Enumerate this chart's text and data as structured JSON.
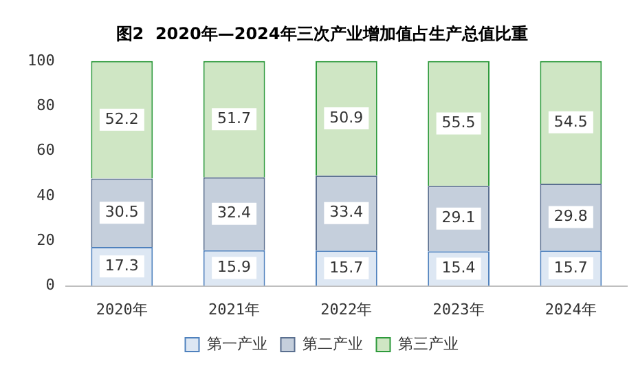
{
  "chart_data": {
    "type": "bar",
    "title": "图2  2020年—2024年三次产业增加值占生产总值比重",
    "categories": [
      "2020年",
      "2021年",
      "2022年",
      "2023年",
      "2024年"
    ],
    "stacked": true,
    "series": [
      {
        "name": "第一产业",
        "color": "#dde7f3",
        "values": [
          17.3,
          15.9,
          15.7,
          15.4,
          15.7
        ]
      },
      {
        "name": "第二产业",
        "color": "#c5cfdc",
        "values": [
          30.5,
          32.4,
          33.4,
          29.1,
          29.8
        ]
      },
      {
        "name": "第三产业",
        "color": "#cfe6c4",
        "values": [
          52.2,
          51.7,
          50.9,
          55.5,
          54.5
        ]
      }
    ],
    "ylim": [
      0,
      100
    ],
    "yticks": [
      0,
      20,
      40,
      60,
      80,
      100
    ],
    "grid": false,
    "legend": "bottom",
    "data_labels": true
  }
}
